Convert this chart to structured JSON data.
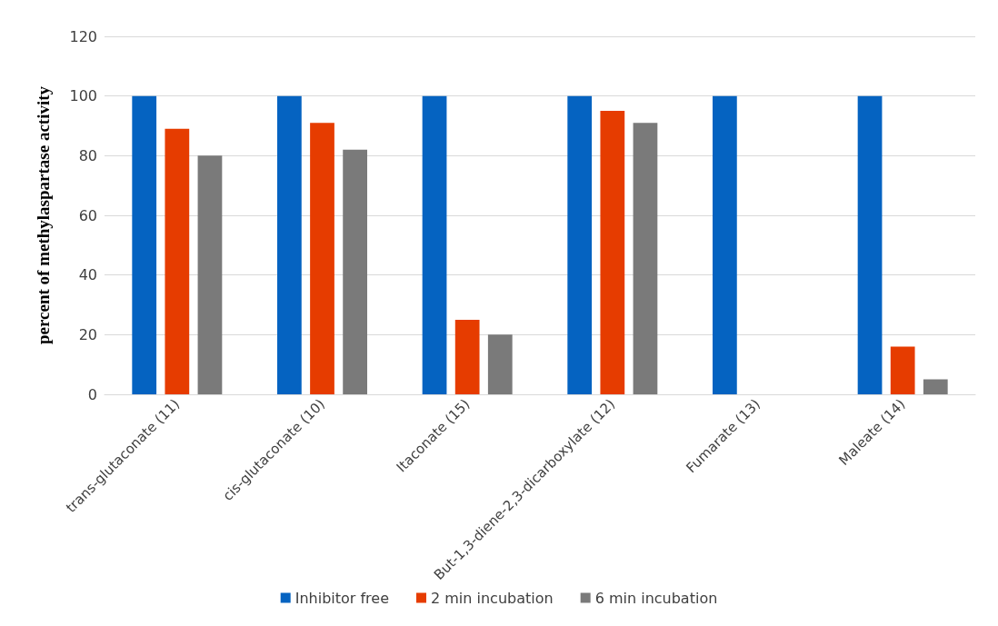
{
  "chart_data": {
    "type": "bar",
    "ylabel": "percent of methylaspartase activity",
    "categories": [
      "trans-glutaconate (11)",
      "cis-glutaconate (10)",
      "Itaconate (15)",
      "But-1,3-diene-2,3-dicarboxylate (12)",
      "Fumarate (13)",
      "Maleate (14)"
    ],
    "series": [
      {
        "name": "Inhibitor free",
        "color": "#0563c1",
        "values": [
          100,
          100,
          100,
          100,
          100,
          100
        ]
      },
      {
        "name": "2 min incubation",
        "color": "#e63c00",
        "values": [
          89,
          91,
          25,
          95,
          0,
          16
        ]
      },
      {
        "name": "6 min incubation",
        "color": "#7a7a7a",
        "values": [
          80,
          82,
          20,
          91,
          0,
          5
        ]
      }
    ],
    "ylim": [
      0,
      120
    ],
    "yticks": [
      0,
      20,
      40,
      60,
      80,
      100,
      120
    ],
    "grid": "y",
    "legend": "bottom"
  }
}
